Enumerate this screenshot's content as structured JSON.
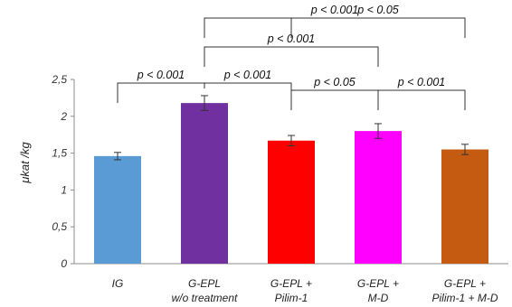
{
  "chart_data": {
    "type": "bar",
    "ylabel": "μkat /kg",
    "ylim": [
      0,
      2.5
    ],
    "yticks": [
      "0",
      "0,5",
      "1",
      "1,5",
      "2",
      "2,5"
    ],
    "categories": [
      [
        "IG"
      ],
      [
        "G-EPL",
        "w/o treatment"
      ],
      [
        "G-EPL +",
        "Pilim-1"
      ],
      [
        "G-EPL +",
        "M-D"
      ],
      [
        "G-EPL +",
        "Pilim-1 + M-D"
      ]
    ],
    "values": [
      1.46,
      2.18,
      1.67,
      1.8,
      1.55
    ],
    "errors": [
      0.05,
      0.1,
      0.07,
      0.1,
      0.07
    ],
    "colors": [
      "#5b9bd5",
      "#7030a0",
      "#ff0000",
      "#ff00ff",
      "#c55a11"
    ],
    "grid": false,
    "comparisons": [
      {
        "from": 0,
        "to": 1,
        "label": "p < 0.001"
      },
      {
        "from": 1,
        "to": 2,
        "label": "p < 0.001"
      },
      {
        "from": 1,
        "to": 3,
        "label": "p < 0.001"
      },
      {
        "from": 1,
        "to": 4,
        "label": "p < 0.001"
      },
      {
        "from": 2,
        "to": 3,
        "label": "p < 0.05"
      },
      {
        "from": 2,
        "to": 4,
        "label": "p < 0.05"
      },
      {
        "from": 3,
        "to": 4,
        "label": "p < 0.001"
      }
    ]
  }
}
